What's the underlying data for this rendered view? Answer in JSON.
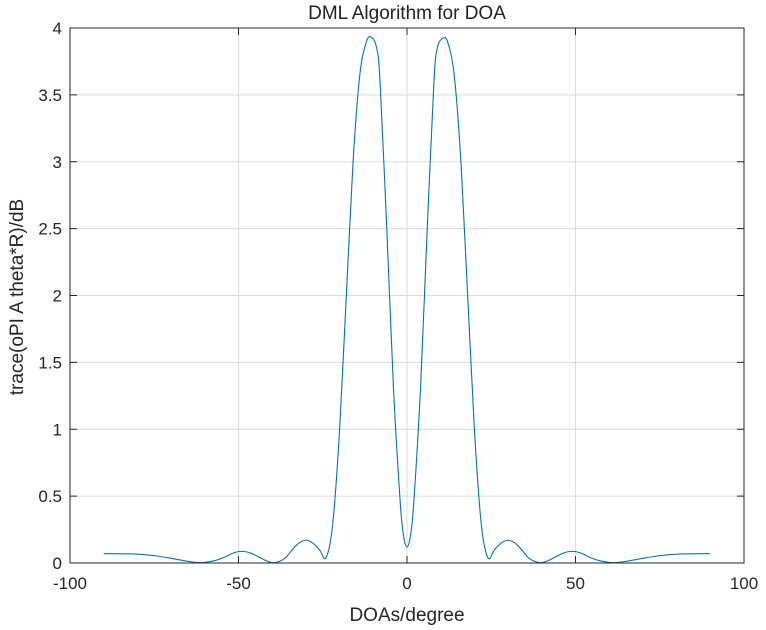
{
  "chart_data": {
    "type": "line",
    "title": "DML Algorithm for DOA",
    "xlabel": "DOAs/degree",
    "ylabel": "trace(oPI A theta*R)/dB",
    "xlim": [
      -100,
      100
    ],
    "ylim": [
      0,
      4
    ],
    "xticks": [
      -100,
      -50,
      0,
      50,
      100
    ],
    "yticks": [
      0,
      0.5,
      1,
      1.5,
      2,
      2.5,
      3,
      3.5,
      4
    ],
    "xtick_labels": [
      "-100",
      "-50",
      "0",
      "50",
      "100"
    ],
    "ytick_labels": [
      "0",
      "0.5",
      "1",
      "1.5",
      "2",
      "2.5",
      "3",
      "3.5",
      "4"
    ],
    "grid": true,
    "series": [
      {
        "color": "#0072bd",
        "x": [
          -90,
          -85,
          -80,
          -75,
          -70,
          -65,
          -62,
          -60,
          -57,
          -54,
          -52,
          -50,
          -48,
          -46,
          -44,
          -42,
          -40,
          -38,
          -36,
          -34,
          -32,
          -30,
          -28,
          -26,
          -24,
          -22,
          -20,
          -18,
          -16,
          -14,
          -12,
          -10.5,
          -9,
          -8,
          -6,
          -4,
          -2,
          -1,
          0,
          1,
          2,
          4,
          6,
          8,
          9,
          10.5,
          12,
          14,
          16,
          18,
          20,
          22,
          24,
          26,
          28,
          30,
          32,
          34,
          36,
          38,
          40,
          42,
          44,
          46,
          48,
          50,
          52,
          54,
          57,
          60,
          62,
          65,
          70,
          75,
          80,
          85,
          90
        ],
        "y": [
          0.07,
          0.069,
          0.066,
          0.055,
          0.035,
          0.012,
          0.003,
          0.004,
          0.018,
          0.045,
          0.07,
          0.085,
          0.085,
          0.07,
          0.045,
          0.02,
          0.003,
          0.01,
          0.04,
          0.1,
          0.15,
          0.17,
          0.15,
          0.1,
          0.04,
          0.3,
          1.0,
          2.0,
          3.0,
          3.65,
          3.9,
          3.93,
          3.85,
          3.6,
          2.5,
          1.3,
          0.45,
          0.2,
          0.12,
          0.2,
          0.45,
          1.3,
          2.5,
          3.6,
          3.85,
          3.92,
          3.9,
          3.65,
          3.0,
          2.0,
          1.0,
          0.3,
          0.04,
          0.1,
          0.15,
          0.17,
          0.15,
          0.1,
          0.04,
          0.01,
          0.003,
          0.02,
          0.045,
          0.07,
          0.085,
          0.085,
          0.07,
          0.045,
          0.018,
          0.004,
          0.003,
          0.012,
          0.035,
          0.055,
          0.066,
          0.069,
          0.07
        ]
      }
    ]
  }
}
